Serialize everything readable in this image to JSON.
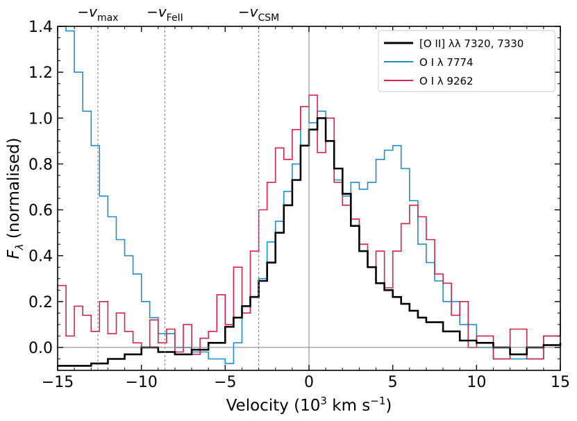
{
  "chart_data": {
    "type": "line",
    "xlabel": "Velocity (10³ km s⁻¹)",
    "ylabel": "Fλ (normalised)",
    "xlim": [
      -15,
      15
    ],
    "ylim": [
      -0.1,
      1.4
    ],
    "x_ticks": [
      -15,
      -10,
      -5,
      0,
      5,
      10,
      15
    ],
    "x_tick_labels": [
      "−15",
      "−10",
      "−5",
      "0",
      "5",
      "10",
      "15"
    ],
    "y_ticks": [
      0.0,
      0.2,
      0.4,
      0.6,
      0.8,
      1.0,
      1.2,
      1.4
    ],
    "y_tick_labels": [
      "0.0",
      "0.2",
      "0.4",
      "0.6",
      "0.8",
      "1.0",
      "1.2",
      "1.4"
    ],
    "grid": false,
    "legend_position": "top-right",
    "zero_lines": {
      "x": 0,
      "y": 0
    },
    "velocity_markers": [
      {
        "label_main": "−v",
        "label_sub": "max",
        "x": -12.6
      },
      {
        "label_main": "−v",
        "label_sub": "FeII",
        "x": -8.6
      },
      {
        "label_main": "−v",
        "label_sub": "CSM",
        "x": -3.0
      }
    ],
    "series": [
      {
        "name": "[O II] λλ 7320, 7330",
        "color": "#000000",
        "x": [
          -15,
          -14,
          -13,
          -12,
          -11,
          -10,
          -9,
          -8,
          -7,
          -6,
          -5,
          -4.5,
          -4,
          -3.5,
          -3,
          -2.5,
          -2,
          -1.5,
          -1,
          -0.5,
          0,
          0.5,
          1,
          1.5,
          2,
          2.5,
          3,
          3.5,
          4,
          4.5,
          5,
          5.5,
          6,
          6.5,
          7,
          8,
          9,
          10,
          11,
          12,
          13,
          14,
          15
        ],
        "y": [
          -0.08,
          -0.08,
          -0.07,
          -0.05,
          -0.03,
          0.0,
          -0.02,
          -0.03,
          -0.01,
          0.02,
          0.09,
          0.13,
          0.18,
          0.22,
          0.29,
          0.37,
          0.5,
          0.62,
          0.73,
          0.88,
          0.95,
          1.0,
          0.9,
          0.78,
          0.67,
          0.53,
          0.42,
          0.35,
          0.28,
          0.25,
          0.22,
          0.19,
          0.16,
          0.13,
          0.11,
          0.07,
          0.03,
          0.02,
          0.0,
          -0.03,
          0.0,
          0.01,
          0.02
        ]
      },
      {
        "name": "O I λ 7774",
        "color": "#1f8fc9",
        "x": [
          -15,
          -14.5,
          -14,
          -13.5,
          -13,
          -12.5,
          -12,
          -11.5,
          -11,
          -10.5,
          -10,
          -9.5,
          -9,
          -8,
          -7,
          -6,
          -5,
          -4.5,
          -4,
          -3.5,
          -3,
          -2.5,
          -2,
          -1.5,
          -1,
          -0.5,
          0,
          0.5,
          1,
          1.5,
          2,
          2.5,
          3,
          3.5,
          4,
          4.5,
          5,
          5.5,
          6,
          6.5,
          7,
          7.5,
          8,
          9,
          10,
          11,
          12,
          13,
          14,
          15
        ],
        "y": [
          1.45,
          1.38,
          1.2,
          1.03,
          0.88,
          0.66,
          0.57,
          0.47,
          0.4,
          0.32,
          0.2,
          0.13,
          0.06,
          0.0,
          -0.02,
          -0.05,
          -0.07,
          0.02,
          0.15,
          0.22,
          0.3,
          0.46,
          0.55,
          0.68,
          0.8,
          1.05,
          0.98,
          1.03,
          0.9,
          0.73,
          0.66,
          0.72,
          0.69,
          0.72,
          0.82,
          0.86,
          0.88,
          0.78,
          0.64,
          0.45,
          0.37,
          0.29,
          0.2,
          0.1,
          0.0,
          -0.05,
          -0.05,
          -0.05,
          0.05,
          0.17
        ]
      },
      {
        "name": "O I λ 9262",
        "color": "#d62148",
        "x": [
          -15,
          -14.5,
          -14,
          -13.5,
          -13,
          -12.5,
          -12,
          -11.5,
          -11,
          -10.5,
          -10,
          -9.5,
          -9,
          -8.5,
          -8,
          -7.5,
          -7,
          -6.5,
          -6,
          -5.5,
          -5,
          -4.5,
          -4,
          -3.5,
          -3,
          -2.5,
          -2,
          -1.5,
          -1,
          -0.5,
          0,
          0.5,
          1,
          1.5,
          2,
          2.5,
          3,
          3.5,
          4,
          4.5,
          5,
          5.5,
          6,
          6.5,
          7,
          7.5,
          8,
          8.5,
          9,
          9.5,
          10,
          11,
          12,
          13,
          14,
          15
        ],
        "y": [
          0.27,
          0.05,
          0.18,
          0.14,
          0.07,
          0.2,
          0.06,
          0.15,
          0.07,
          0.02,
          0.0,
          0.12,
          0.02,
          0.08,
          -0.02,
          0.1,
          -0.03,
          0.04,
          0.07,
          0.23,
          0.1,
          0.35,
          0.15,
          0.42,
          0.6,
          0.72,
          0.87,
          0.82,
          0.95,
          1.05,
          1.1,
          0.85,
          1.0,
          0.72,
          0.62,
          0.56,
          0.45,
          0.35,
          0.42,
          0.26,
          0.42,
          0.54,
          0.62,
          0.57,
          0.47,
          0.32,
          0.28,
          0.14,
          0.2,
          0.0,
          0.05,
          -0.05,
          0.08,
          -0.05,
          0.05,
          0.1
        ]
      }
    ]
  }
}
